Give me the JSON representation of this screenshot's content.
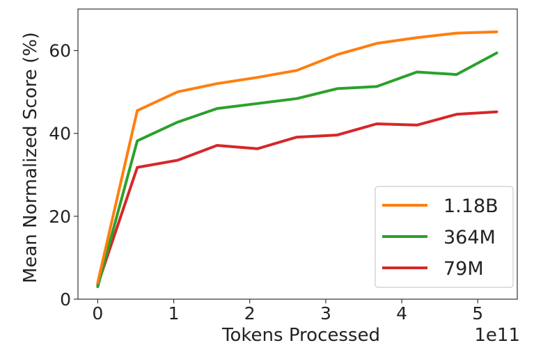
{
  "chart_data": {
    "type": "line",
    "xlabel": "Tokens Processed",
    "ylabel": "Mean Normalized Score (%)",
    "x_offset_label": "1e11",
    "x_ticks": [
      "0",
      "1",
      "2",
      "3",
      "4",
      "5"
    ],
    "y_ticks": [
      "0",
      "20",
      "40",
      "60"
    ],
    "xlim": [
      -0.26,
      5.52
    ],
    "ylim": [
      0,
      70
    ],
    "grid": false,
    "legend_position": "lower-right",
    "x": [
      0,
      0.52,
      1.05,
      1.57,
      2.1,
      2.62,
      3.15,
      3.67,
      4.2,
      4.72,
      5.25
    ],
    "series": [
      {
        "name": "1.18B",
        "color": "#ff7f0e",
        "values": [
          4.0,
          45.5,
          50.0,
          52.0,
          53.5,
          55.2,
          59.0,
          61.7,
          63.1,
          64.2,
          64.5
        ]
      },
      {
        "name": "364M",
        "color": "#2ca02c",
        "values": [
          3.0,
          38.2,
          42.7,
          46.0,
          47.2,
          48.4,
          50.8,
          51.3,
          54.8,
          54.2,
          59.4
        ]
      },
      {
        "name": "79M",
        "color": "#d62728",
        "values": [
          3.5,
          31.8,
          33.5,
          37.1,
          36.3,
          39.1,
          39.6,
          42.3,
          42.0,
          44.6,
          45.2
        ]
      }
    ]
  }
}
